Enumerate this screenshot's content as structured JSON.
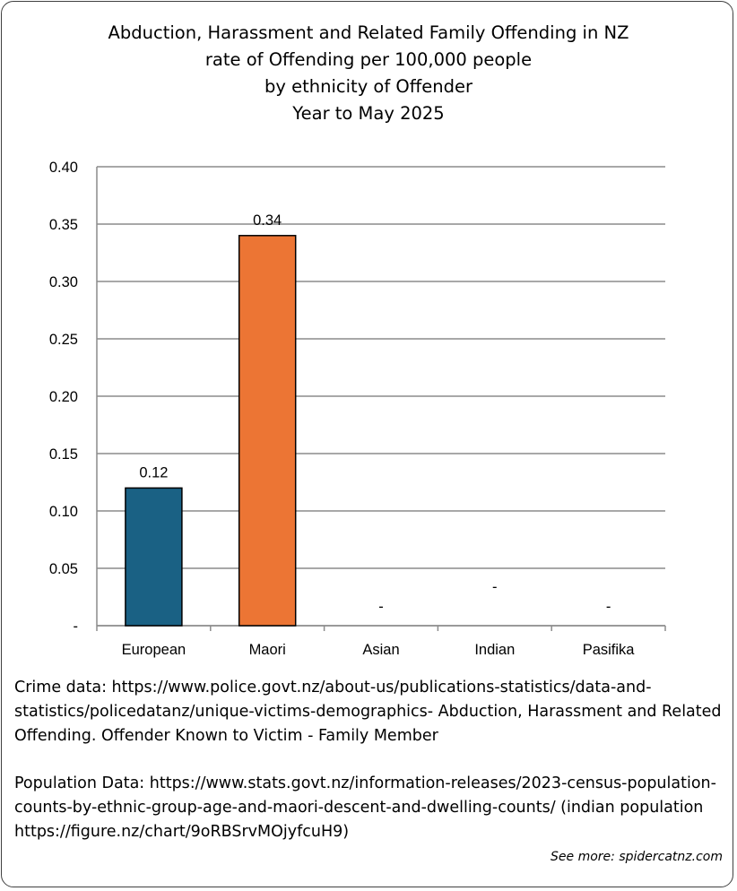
{
  "chart_data": {
    "type": "bar",
    "title": [
      "Abduction, Harassment and Related Family Offending in NZ",
      "rate of Offending per 100,000 people",
      "by ethnicity of Offender",
      "Year to May 2025"
    ],
    "categories": [
      "European",
      "Maori",
      "Asian",
      "Indian",
      "Pasifika"
    ],
    "values": [
      0.12,
      0.34,
      0,
      0,
      0
    ],
    "data_labels": [
      "0.12",
      "0.34",
      "-",
      "-",
      "-"
    ],
    "bar_colors": [
      "#1a6184",
      "#ec7534",
      "#1a6184",
      "#1a6184",
      "#1a6184"
    ],
    "ylim": [
      0,
      0.4
    ],
    "yticks": [
      "-",
      "0.05",
      "0.10",
      "0.15",
      "0.20",
      "0.25",
      "0.30",
      "0.35",
      "0.40"
    ],
    "grid": true,
    "xlabel": "",
    "ylabel": ""
  },
  "notes": {
    "crime": "Crime data: https://www.police.govt.nz/about-us/publications-statistics/data-and-statistics/policedatanz/unique-victims-demographics- Abduction, Harassment and Related Offending. Offender Known to Victim - Family Member",
    "population": "Population Data: https://www.stats.govt.nz/information-releases/2023-census-population-counts-by-ethnic-group-age-and-maori-descent-and-dwelling-counts/ (indian population https://figure.nz/chart/9oRBSrvMOjyfcuH9)"
  },
  "credit": "See more: spidercatnz.com"
}
